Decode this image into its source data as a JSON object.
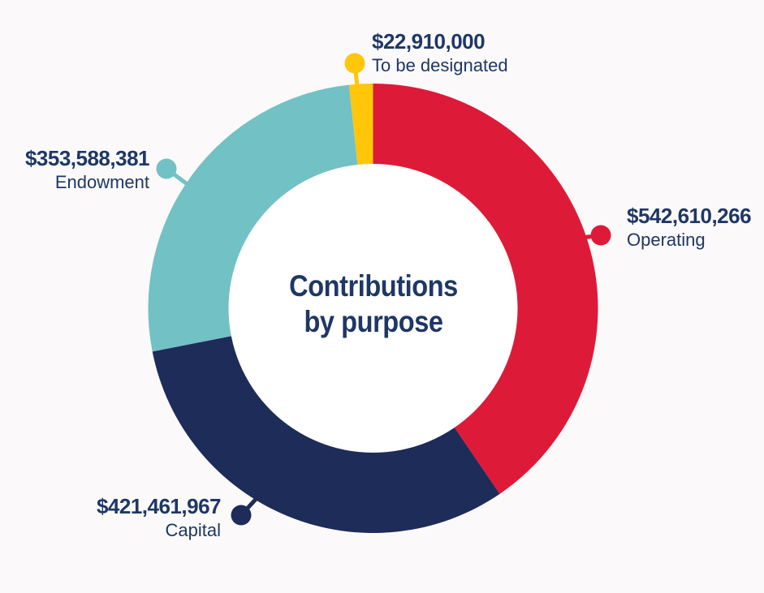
{
  "background_color": "#FBF9F9",
  "text_color": "#1E3765",
  "chart_data": {
    "type": "pie",
    "subtype": "donut",
    "title": "Contributions by purpose",
    "center_title_lines": [
      "Contributions",
      "by purpose"
    ],
    "categories": [
      "Operating",
      "Capital",
      "Endowment",
      "To be designated"
    ],
    "values": [
      542610266,
      421461967,
      353588381,
      22910000
    ],
    "value_labels": [
      "$542,610,266",
      "$421,461,967",
      "$353,588,381",
      "$22,910,000"
    ],
    "colors": [
      "#DE1A39",
      "#1D2C58",
      "#72C1C5",
      "#FFC60A"
    ],
    "slices": [
      {
        "name": "Operating",
        "amount": "$542,610,266",
        "value": 542610266,
        "color": "#DE1A39"
      },
      {
        "name": "Capital",
        "amount": "$421,461,967",
        "value": 421461967,
        "color": "#1D2C58"
      },
      {
        "name": "Endowment",
        "amount": "$353,588,381",
        "value": 353588381,
        "color": "#72C1C5"
      },
      {
        "name": "To be designated",
        "amount": "$22,910,000",
        "value": 22910000,
        "color": "#FFC60A"
      }
    ],
    "start_angle_deg": 0,
    "direction": "clockwise",
    "inner_radius_ratio": 0.64,
    "hole_color": "#FFFFFF",
    "legend": "none",
    "label_style": "external callout labels with leader dots"
  }
}
